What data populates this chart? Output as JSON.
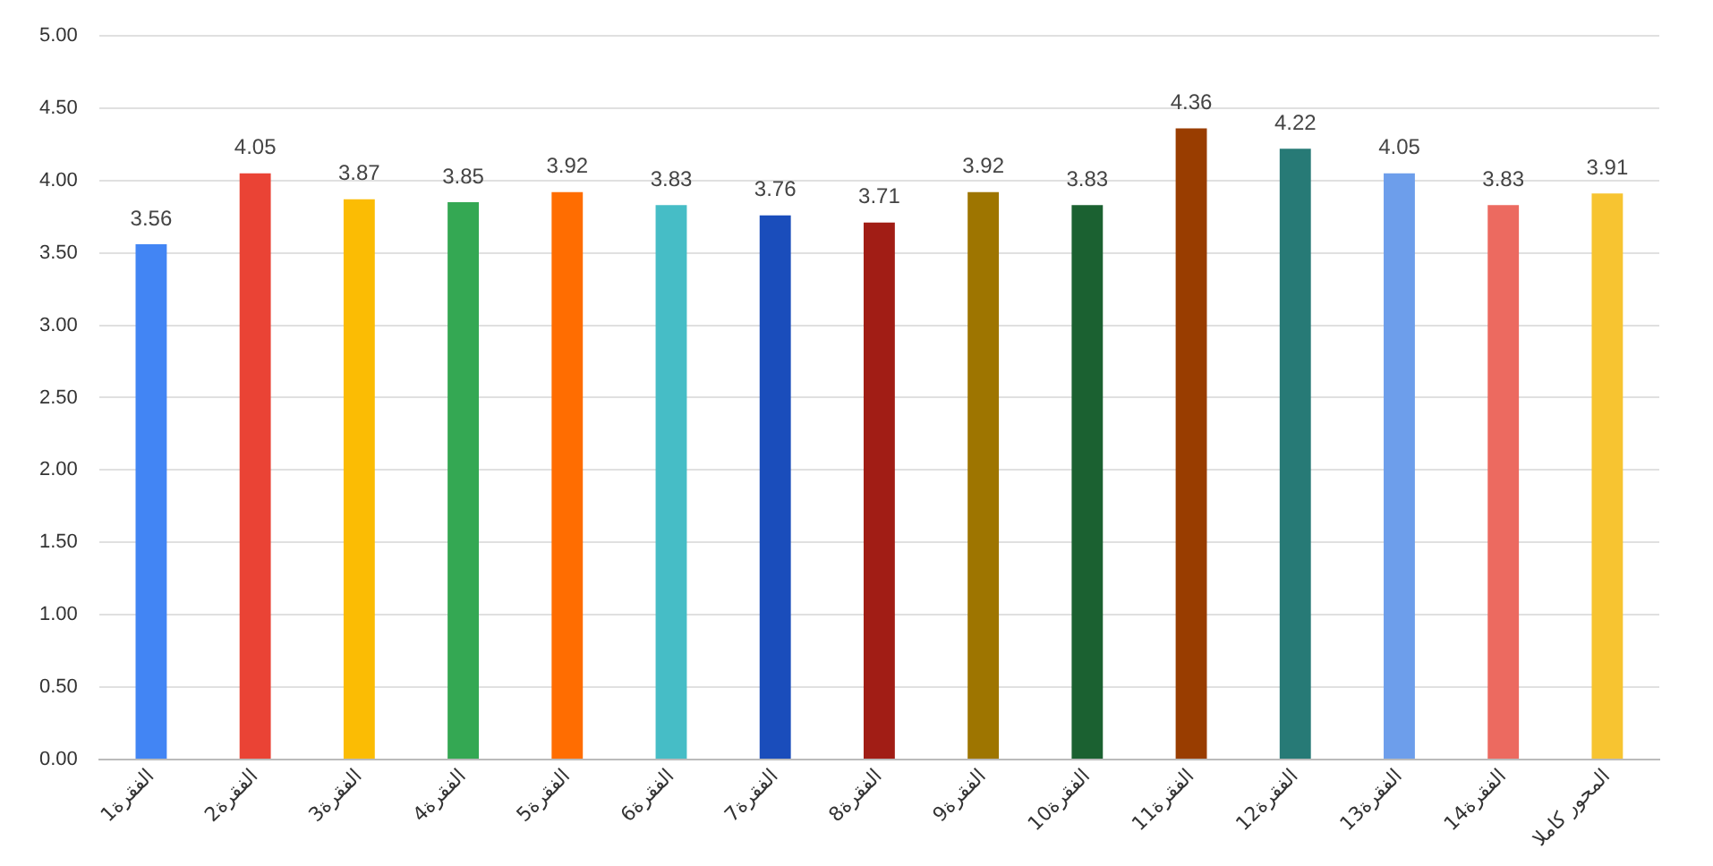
{
  "chart_data": {
    "type": "bar",
    "categories": [
      "الفقرة1",
      "الفقرة2",
      "الفقرة3",
      "الفقرة4",
      "الفقرة5",
      "الفقرة6",
      "الفقرة7",
      "الفقرة8",
      "الفقرة9",
      "الفقرة10",
      "الفقرة11",
      "الفقرة12",
      "الفقرة13",
      "الفقرة14",
      "المحور كاملا"
    ],
    "values": [
      3.56,
      4.05,
      3.87,
      3.85,
      3.92,
      3.83,
      3.76,
      3.71,
      3.92,
      3.83,
      4.36,
      4.22,
      4.05,
      3.83,
      3.91
    ],
    "colors": [
      "#4285f4",
      "#ea4335",
      "#fbbc04",
      "#34a853",
      "#ff6d01",
      "#46bdc6",
      "#1a4dbb",
      "#a11d15",
      "#9e7500",
      "#1b6131",
      "#993d00",
      "#277a76",
      "#6d9eeb",
      "#ec6a60",
      "#f7c431"
    ],
    "ylim": [
      0,
      5
    ],
    "yticks": [
      {
        "value": 0,
        "label": "0.00"
      },
      {
        "value": 0.5,
        "label": "0.50"
      },
      {
        "value": 1,
        "label": "1.00"
      },
      {
        "value": 1.5,
        "label": "1.50"
      },
      {
        "value": 2,
        "label": "2.00"
      },
      {
        "value": 2.5,
        "label": "2.50"
      },
      {
        "value": 3,
        "label": "3.00"
      },
      {
        "value": 3.5,
        "label": "3.50"
      },
      {
        "value": 4,
        "label": "4.00"
      },
      {
        "value": 4.5,
        "label": "4.50"
      },
      {
        "value": 5,
        "label": "5.00"
      }
    ],
    "grid": "y",
    "data_labels": true,
    "legend": false
  }
}
